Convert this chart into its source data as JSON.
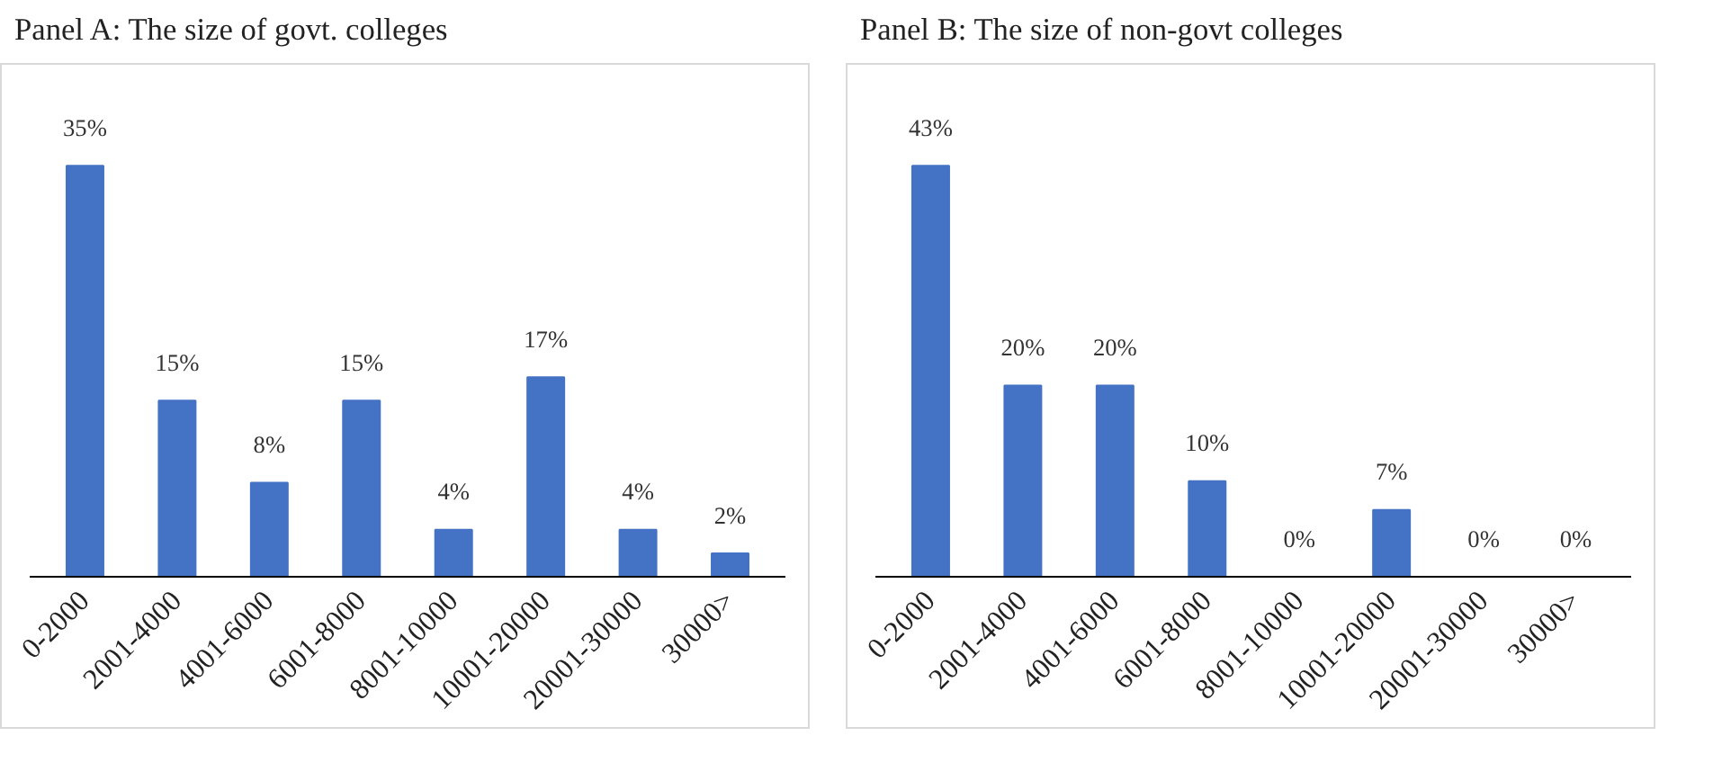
{
  "chart_data": [
    {
      "type": "bar",
      "title": "Panel A: The size of govt. colleges",
      "categories": [
        "0-2000",
        "2001-4000",
        "4001-6000",
        "6001-8000",
        "8001-10000",
        "10001-20000",
        "20001-30000",
        "30000>"
      ],
      "values": [
        35,
        15,
        8,
        15,
        4,
        17,
        4,
        2
      ],
      "value_labels": [
        "35%",
        "15%",
        "8%",
        "15%",
        "4%",
        "17%",
        "4%",
        "2%"
      ],
      "color": "#4472c4",
      "grid": false
    },
    {
      "type": "bar",
      "title": "Panel B: The size of non-govt colleges",
      "categories": [
        "0-2000",
        "2001-4000",
        "4001-6000",
        "6001-8000",
        "8001-10000",
        "10001-20000",
        "20001-30000",
        "30000>"
      ],
      "values": [
        43,
        20,
        20,
        10,
        0,
        7,
        0,
        0
      ],
      "value_labels": [
        "43%",
        "20%",
        "20%",
        "10%",
        "0%",
        "7%",
        "0%",
        "0%"
      ],
      "color": "#4472c4",
      "grid": false
    }
  ]
}
